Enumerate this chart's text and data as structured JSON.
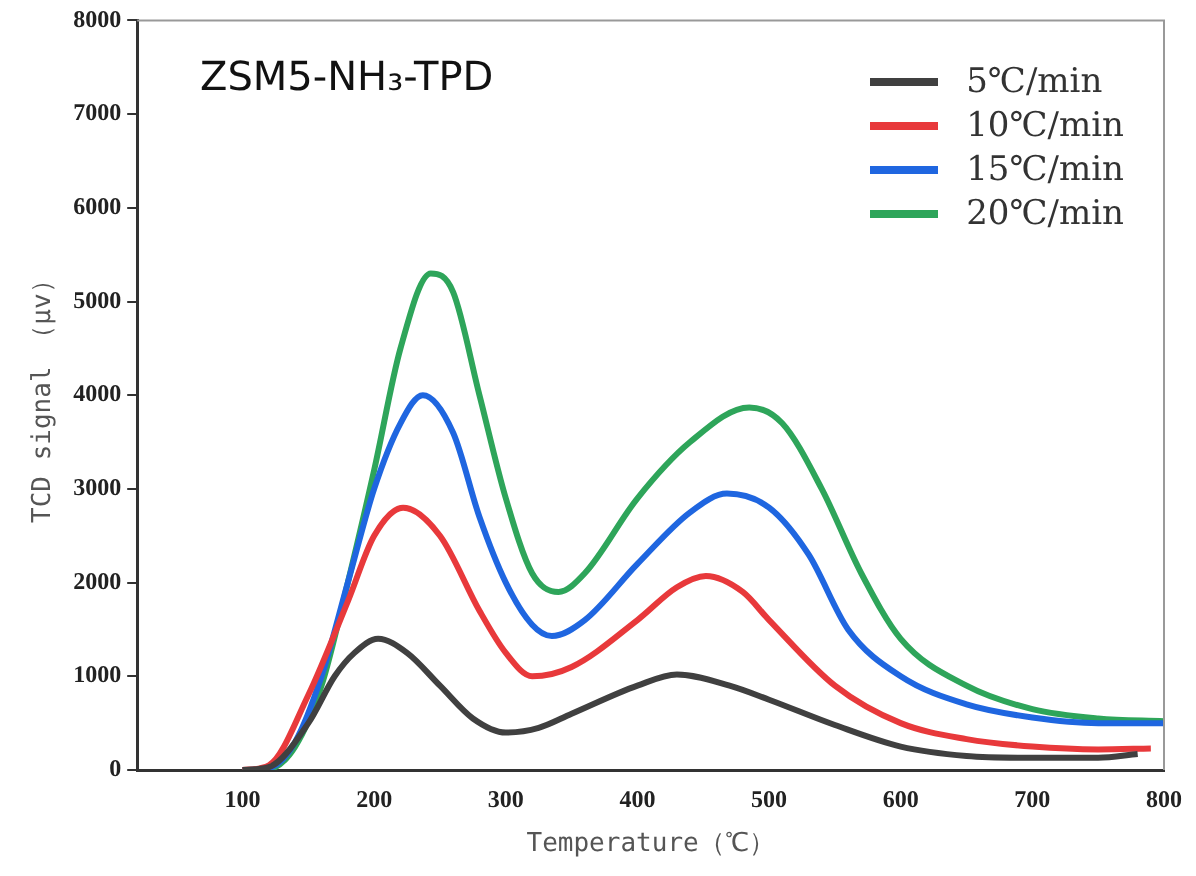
{
  "chart_data": {
    "type": "line",
    "title": "ZSM5-NH₃-TPD",
    "xlabel": "Temperature（℃）",
    "ylabel": "TCD signal （μv）",
    "xlim": [
      20,
      800
    ],
    "xticks": [
      100,
      200,
      300,
      400,
      500,
      600,
      700,
      800
    ],
    "ylim": [
      0,
      8000
    ],
    "yticks": [
      0,
      1000,
      2000,
      3000,
      4000,
      5000,
      6000,
      7000,
      8000
    ],
    "grid": false,
    "legend": "top right",
    "marker": "none",
    "line_style": "solid",
    "series": [
      {
        "name": "5℃/min",
        "color": "#404040",
        "x": [
          100,
          120,
          150,
          170,
          185,
          203,
          225,
          250,
          275,
          300,
          325,
          350,
          400,
          430,
          470,
          500,
          550,
          600,
          650,
          700,
          750,
          780
        ],
        "values": [
          0,
          30,
          500,
          1000,
          1250,
          1400,
          1250,
          900,
          550,
          400,
          450,
          600,
          900,
          1020,
          900,
          750,
          480,
          250,
          150,
          130,
          130,
          170
        ]
      },
      {
        "name": "10℃/min",
        "color": "#e8393b",
        "x": [
          100,
          120,
          150,
          180,
          200,
          222,
          250,
          280,
          300,
          320,
          350,
          400,
          430,
          452,
          480,
          500,
          550,
          600,
          650,
          700,
          750,
          790
        ],
        "values": [
          0,
          50,
          800,
          1800,
          2500,
          2800,
          2500,
          1700,
          1250,
          1000,
          1100,
          1600,
          1950,
          2070,
          1900,
          1600,
          900,
          500,
          330,
          250,
          220,
          230
        ]
      },
      {
        "name": "15℃/min",
        "color": "#1f66e0",
        "x": [
          100,
          120,
          140,
          160,
          180,
          200,
          220,
          237,
          260,
          280,
          300,
          320,
          335,
          360,
          400,
          440,
          468,
          500,
          530,
          560,
          600,
          650,
          700,
          750,
          800
        ],
        "values": [
          0,
          20,
          300,
          1000,
          2000,
          3000,
          3700,
          4000,
          3600,
          2700,
          2000,
          1550,
          1430,
          1600,
          2200,
          2750,
          2950,
          2800,
          2300,
          1500,
          1000,
          700,
          560,
          500,
          500
        ]
      },
      {
        "name": "20℃/min",
        "color": "#2ea55a",
        "x": [
          100,
          120,
          140,
          160,
          180,
          200,
          220,
          243,
          260,
          280,
          300,
          320,
          340,
          360,
          400,
          440,
          485,
          510,
          540,
          570,
          600,
          650,
          700,
          750,
          800
        ],
        "values": [
          0,
          10,
          250,
          900,
          2000,
          3200,
          4500,
          5300,
          5100,
          4000,
          2900,
          2100,
          1900,
          2100,
          2900,
          3500,
          3870,
          3700,
          3000,
          2100,
          1400,
          900,
          650,
          550,
          520
        ]
      }
    ]
  }
}
